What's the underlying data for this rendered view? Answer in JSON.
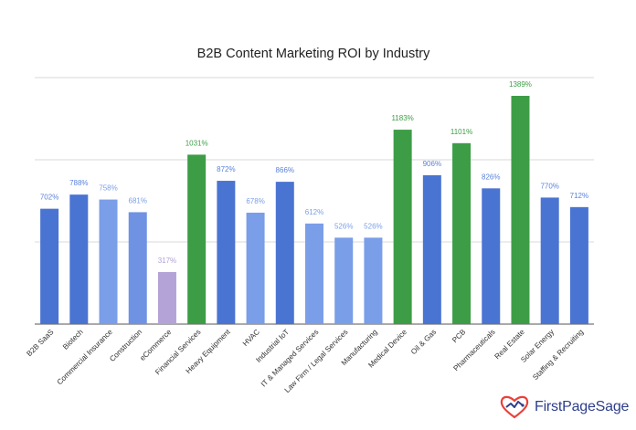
{
  "chart_data": {
    "type": "bar",
    "title": "B2B Content Marketing ROI by Industry",
    "xlabel": "",
    "ylabel": "",
    "ylim": [
      0,
      1400
    ],
    "grid": true,
    "categories": [
      "B2B SaaS",
      "Biotech",
      "Commercial Insurance",
      "Construction",
      "eCommerce",
      "Financial Services",
      "Heavy Equipment",
      "HVAC",
      "Industrial IoT",
      "IT & Managed Services",
      "Law Firm / Legal Services",
      "Manufacturing",
      "Medical Device",
      "Oil & Gas",
      "PCB",
      "Pharmaceuticals",
      "Real Estate",
      "Solar Energy",
      "Staffing & Recruiting"
    ],
    "values": [
      702,
      788,
      758,
      681,
      317,
      1031,
      872,
      678,
      866,
      612,
      526,
      526,
      1183,
      906,
      1101,
      826,
      1389,
      770,
      712
    ],
    "value_labels": [
      "702%",
      "788%",
      "758%",
      "681%",
      "317%",
      "1031%",
      "872%",
      "678%",
      "866%",
      "612%",
      "526%",
      "526%",
      "1183%",
      "906%",
      "1101%",
      "826%",
      "1389%",
      "770%",
      "712%"
    ],
    "bar_colors": [
      "#4a74d2",
      "#4a74d2",
      "#7a9ee8",
      "#6f93e2",
      "#b3a3d7",
      "#3d9d46",
      "#4a74d2",
      "#7a9ee8",
      "#4a74d2",
      "#7a9ee8",
      "#7a9ee8",
      "#7a9ee8",
      "#3d9d46",
      "#4a74d2",
      "#3d9d46",
      "#4a74d2",
      "#3d9d46",
      "#4a74d2",
      "#4a74d2"
    ],
    "label_colors": [
      "#5a82d8",
      "#5a82d8",
      "#7a9ee8",
      "#7a9ee8",
      "#b3a3d7",
      "#3d9d46",
      "#5a82d8",
      "#7a9ee8",
      "#5a82d8",
      "#7a9ee8",
      "#7a9ee8",
      "#7a9ee8",
      "#3d9d46",
      "#5a82d8",
      "#3d9d46",
      "#5a82d8",
      "#3d9d46",
      "#5a82d8",
      "#5a82d8"
    ]
  },
  "brand": {
    "name": "FirstPageSage",
    "logo_color": "#e8413a",
    "text_color": "#2e3e8c",
    "logo_icon": "heart-chart-icon"
  }
}
